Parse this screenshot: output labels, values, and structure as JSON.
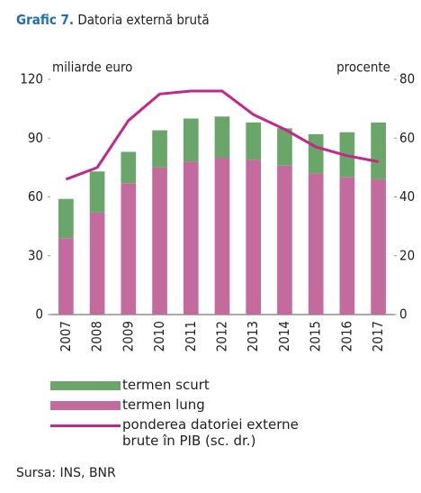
{
  "chart_data": {
    "type": "bar",
    "title_label": "Grafic 7.",
    "title": "Datoria externă brută",
    "y_label": "miliarde euro",
    "y2_label": "procente",
    "source": "Sursa: INS, BNR",
    "stacked": true,
    "categories": [
      "2007",
      "2008",
      "2009",
      "2010",
      "2011",
      "2012",
      "2013",
      "2014",
      "2015",
      "2016",
      "2017"
    ],
    "series": [
      {
        "name": "termen scurt",
        "color": "#6aa56a",
        "values": [
          20,
          21,
          16,
          19,
          22,
          21,
          19,
          19,
          20,
          23,
          29
        ]
      },
      {
        "name": "termen lung",
        "color": "#c36b9c",
        "values": [
          39,
          52,
          67,
          75,
          78,
          80,
          79,
          76,
          72,
          70,
          69
        ]
      },
      {
        "name": "ponderea datoriei externe brute în PIB (sc. dr.)",
        "color": "#c2288a",
        "type": "line",
        "axis": "y2",
        "values": [
          46,
          50,
          66,
          75,
          76,
          76,
          68,
          63,
          57,
          54,
          52
        ]
      }
    ],
    "ylim": [
      0,
      120
    ],
    "yticks": [
      0,
      30,
      60,
      90,
      120
    ],
    "y2lim": [
      0,
      80
    ],
    "y2ticks": [
      0,
      20,
      40,
      60,
      80
    ],
    "grid": false
  }
}
